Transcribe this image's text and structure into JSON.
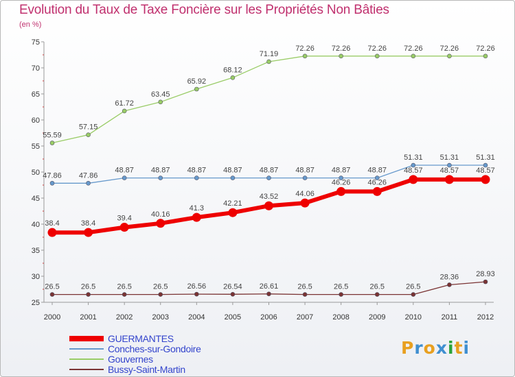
{
  "header": {
    "title": "Evolution du Taux de Taxe Foncière sur les Propriétés Non Bâties",
    "subtitle": "(en %)"
  },
  "brand": {
    "letters": [
      "P",
      "r",
      "o",
      "x",
      "i",
      "t",
      "i"
    ],
    "colors": [
      "#e8a020",
      "#3f8fd0",
      "#e8a020",
      "#3f8fd0",
      "#2aa33a",
      "#e8a020",
      "#3f8fd0"
    ]
  },
  "chart_data": {
    "type": "line",
    "title": "Evolution du Taux de Taxe Foncière sur les Propriétés Non Bâties",
    "ylabel": "(en %)",
    "xlabel": "",
    "x": [
      "2000",
      "2001",
      "2002",
      "2003",
      "2004",
      "2005",
      "2006",
      "2007",
      "2008",
      "2009",
      "2010",
      "2011",
      "2012"
    ],
    "ylim": [
      25,
      75
    ],
    "yticks": [
      25,
      30,
      35,
      40,
      45,
      50,
      55,
      60,
      65,
      70,
      75
    ],
    "grid": false,
    "legend_position": "bottom-left",
    "series": [
      {
        "name": "GUERMANTES",
        "color": "#ee0000",
        "values": [
          38.4,
          38.4,
          39.4,
          40.16,
          41.3,
          42.21,
          43.52,
          44.06,
          46.26,
          46.26,
          48.57,
          48.57,
          48.57
        ],
        "labels": [
          "38.4",
          "38.4",
          "39.4",
          "40.16",
          "41.3",
          "42.21",
          "43.52",
          "44.06",
          "46.26",
          "46.26",
          "48.57",
          "48.57",
          "48.57"
        ]
      },
      {
        "name": "Conches-sur-Gondoire",
        "color": "#6699cc",
        "values": [
          47.86,
          47.86,
          48.87,
          48.87,
          48.87,
          48.87,
          48.87,
          48.87,
          48.87,
          48.87,
          51.31,
          51.31,
          51.31
        ],
        "labels": [
          "47.86",
          "47.86",
          "48.87",
          "48.87",
          "48.87",
          "48.87",
          "48.87",
          "48.87",
          "48.87",
          "48.87",
          "51.31",
          "51.31",
          "51.31"
        ]
      },
      {
        "name": "Gouvernes",
        "color": "#99cc66",
        "values": [
          55.59,
          57.15,
          61.72,
          63.45,
          65.92,
          68.12,
          71.19,
          72.26,
          72.26,
          72.26,
          72.26,
          72.26,
          72.26
        ],
        "labels": [
          "55.59",
          "57.15",
          "61.72",
          "63.45",
          "65.92",
          "68.12",
          "71.19",
          "72.26",
          "72.26",
          "72.26",
          "72.26",
          "72.26",
          "72.26"
        ]
      },
      {
        "name": "Bussy-Saint-Martin",
        "color": "#7a3333",
        "values": [
          26.5,
          26.5,
          26.5,
          26.5,
          26.56,
          26.54,
          26.61,
          26.5,
          26.5,
          26.5,
          26.5,
          28.36,
          28.93
        ],
        "labels": [
          "26.5",
          "26.5",
          "26.5",
          "26.5",
          "26.56",
          "26.54",
          "26.61",
          "26.5",
          "26.5",
          "26.5",
          "26.5",
          "28.36",
          "28.93"
        ]
      }
    ]
  }
}
